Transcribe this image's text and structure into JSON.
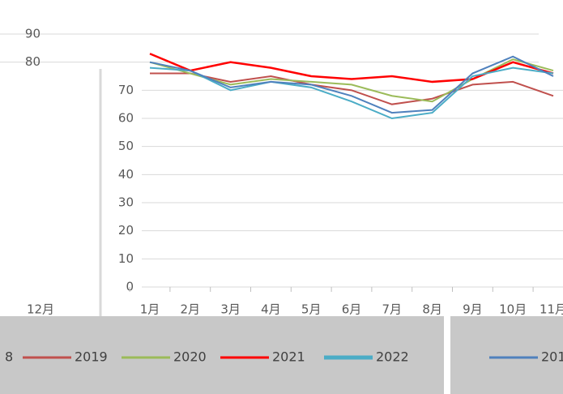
{
  "chart_data": {
    "type": "line",
    "categories": [
      "1月",
      "2月",
      "3月",
      "4月",
      "5月",
      "6月",
      "7月",
      "8月",
      "9月",
      "10月",
      "11月"
    ],
    "left_labels": [
      "12月"
    ],
    "legend_fragments": [
      "8"
    ],
    "series": [
      {
        "name": "2019",
        "color": "#c0504d",
        "values": [
          76,
          76,
          73,
          75,
          72,
          70,
          65,
          67,
          72,
          73,
          68
        ]
      },
      {
        "name": "2020",
        "color": "#9bbb59",
        "values": [
          80,
          76,
          72,
          74,
          73,
          72,
          68,
          66,
          74,
          81,
          77
        ]
      },
      {
        "name": "2021",
        "color": "#ff0000",
        "values": [
          83,
          77,
          80,
          78,
          75,
          74,
          75,
          73,
          74,
          80,
          76
        ]
      },
      {
        "name": "2022",
        "color": "#4bacc6",
        "values": [
          78,
          77,
          70,
          73,
          71,
          66,
          60,
          62,
          75,
          78,
          76
        ]
      },
      {
        "name": "201",
        "color": "#4f81bd",
        "values": [
          80,
          77,
          71,
          73,
          72,
          68,
          62,
          63,
          76,
          82,
          75
        ]
      }
    ],
    "ylim": [
      0,
      90
    ],
    "yticks": [
      0,
      10,
      20,
      30,
      40,
      50,
      60,
      70,
      80,
      90
    ],
    "grid": true
  }
}
